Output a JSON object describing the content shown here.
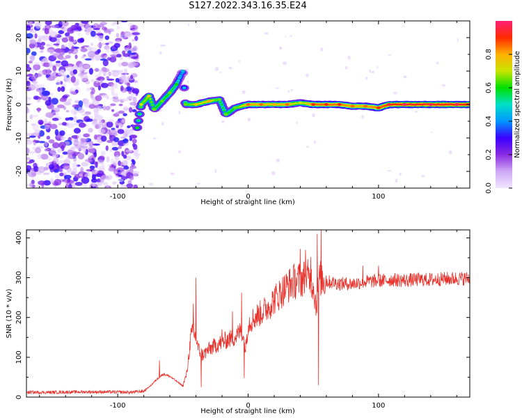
{
  "title": "S127.2022.343.16.35.E24",
  "chart_data": [
    {
      "type": "heatmap",
      "xlabel": "Height of straight line (km)",
      "ylabel": "Frequency (Hz)",
      "xlim": [
        -170,
        170
      ],
      "ylim": [
        -25,
        25
      ],
      "x_ticks": [
        -100,
        0,
        100
      ],
      "y_ticks": [
        -20,
        -10,
        0,
        10,
        20
      ],
      "colorbar": {
        "label": "Normalized spectral amplitude",
        "range": [
          0.0,
          1.0
        ],
        "ticks": [
          0.0,
          0.2,
          0.4,
          0.6,
          0.8
        ],
        "colors": [
          "#f0e6ff",
          "#cfa8f5",
          "#8a2be2",
          "#3a00ff",
          "#0096ff",
          "#00e0c8",
          "#00e000",
          "#c8e600",
          "#ffb000",
          "#ff2a00",
          "#ff1f78"
        ]
      },
      "noise_region_x": [
        -170,
        -85
      ],
      "ridge": [
        {
          "x": -85,
          "y": -7,
          "a": 0.55
        },
        {
          "x": -82,
          "y": 0,
          "a": 0.65
        },
        {
          "x": -76,
          "y": 2.5,
          "a": 0.7
        },
        {
          "x": -72,
          "y": -1.5,
          "a": 0.6
        },
        {
          "x": -66,
          "y": 1,
          "a": 0.6
        },
        {
          "x": -60,
          "y": 3.5,
          "a": 0.6
        },
        {
          "x": -55,
          "y": 6,
          "a": 0.55
        },
        {
          "x": -50,
          "y": 10,
          "a": 0.4
        },
        {
          "x": -48,
          "y": 0,
          "a": 0.6
        },
        {
          "x": -40,
          "y": 0,
          "a": 0.7
        },
        {
          "x": -30,
          "y": 1,
          "a": 0.75
        },
        {
          "x": -22,
          "y": 1.5,
          "a": 0.6
        },
        {
          "x": -17,
          "y": -3,
          "a": 0.6
        },
        {
          "x": -10,
          "y": -1,
          "a": 0.6
        },
        {
          "x": 0,
          "y": 0,
          "a": 0.8
        },
        {
          "x": 10,
          "y": 0,
          "a": 0.8
        },
        {
          "x": 20,
          "y": 0,
          "a": 0.75
        },
        {
          "x": 30,
          "y": 0,
          "a": 0.8
        },
        {
          "x": 40,
          "y": 0.5,
          "a": 0.65
        },
        {
          "x": 50,
          "y": 0,
          "a": 0.85
        },
        {
          "x": 60,
          "y": 0,
          "a": 0.85
        },
        {
          "x": 70,
          "y": 0,
          "a": 0.85
        },
        {
          "x": 80,
          "y": -0.5,
          "a": 0.8
        },
        {
          "x": 90,
          "y": -0.5,
          "a": 0.8
        },
        {
          "x": 100,
          "y": -1,
          "a": 0.85
        },
        {
          "x": 108,
          "y": 0,
          "a": 0.9
        },
        {
          "x": 120,
          "y": 0,
          "a": 0.92
        },
        {
          "x": 140,
          "y": 0,
          "a": 0.92
        },
        {
          "x": 160,
          "y": 0,
          "a": 0.92
        },
        {
          "x": 170,
          "y": 0,
          "a": 0.92
        }
      ]
    },
    {
      "type": "line",
      "xlabel": "Height of straight line (km)",
      "ylabel": "SNR (10 * v/v)",
      "xlim": [
        -170,
        170
      ],
      "ylim": [
        0,
        420
      ],
      "x_ticks": [
        -100,
        0,
        100
      ],
      "y_ticks": [
        0,
        100,
        200,
        300,
        400
      ],
      "series": [
        {
          "color": "#e8312a",
          "x": [
            -170,
            -150,
            -130,
            -110,
            -90,
            -80,
            -75,
            -70,
            -65,
            -60,
            -55,
            -50,
            -47,
            -44,
            -42,
            -40,
            -38,
            -35,
            -30,
            -25,
            -20,
            -15,
            -10,
            -5,
            -2,
            0,
            5,
            10,
            15,
            20,
            25,
            30,
            35,
            40,
            45,
            50,
            52,
            55,
            60,
            65,
            70,
            80,
            90,
            100,
            105,
            110,
            120,
            130,
            140,
            150,
            160,
            170
          ],
          "y": [
            12,
            12,
            13,
            13,
            12,
            15,
            28,
            45,
            58,
            52,
            40,
            28,
            60,
            150,
            165,
            145,
            120,
            105,
            120,
            130,
            138,
            145,
            150,
            170,
            120,
            185,
            200,
            212,
            225,
            245,
            262,
            278,
            290,
            295,
            302,
            285,
            230,
            300,
            290,
            288,
            285,
            285,
            290,
            292,
            293,
            295,
            293,
            295,
            295,
            297,
            298,
            298
          ]
        }
      ],
      "spikes": [
        {
          "x": -68,
          "y": 92
        },
        {
          "x": -40,
          "y": 300
        },
        {
          "x": -42,
          "y": 235
        },
        {
          "x": -36,
          "y": 25
        },
        {
          "x": -20,
          "y": 170
        },
        {
          "x": -12,
          "y": 215
        },
        {
          "x": -5,
          "y": 262
        },
        {
          "x": -3,
          "y": 48
        },
        {
          "x": 40,
          "y": 372
        },
        {
          "x": 44,
          "y": 370
        },
        {
          "x": 48,
          "y": 352
        },
        {
          "x": 53,
          "y": 410
        },
        {
          "x": 54,
          "y": 30
        },
        {
          "x": 56,
          "y": 420
        },
        {
          "x": 100,
          "y": 330
        },
        {
          "x": 88,
          "y": 330
        }
      ]
    }
  ]
}
